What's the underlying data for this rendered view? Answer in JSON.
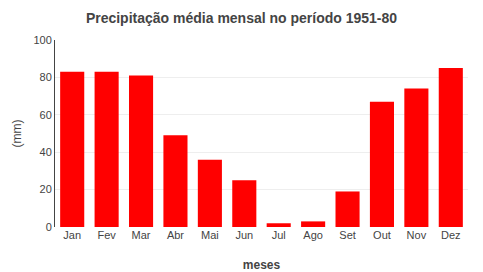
{
  "chart_data": {
    "type": "bar",
    "title": "Precipitação média mensal no período 1951-80",
    "xlabel": "meses",
    "ylabel": "(mm)",
    "categories": [
      "Jan",
      "Fev",
      "Mar",
      "Abr",
      "Mai",
      "Jun",
      "Jul",
      "Ago",
      "Set",
      "Out",
      "Nov",
      "Dez"
    ],
    "values": [
      83,
      83,
      81,
      49,
      36,
      25,
      2,
      3,
      19,
      67,
      74,
      85
    ],
    "color": "#FF0000",
    "ylim": [
      0,
      100
    ],
    "yticks": [
      0,
      20,
      40,
      60,
      80,
      100
    ],
    "grid": true
  }
}
